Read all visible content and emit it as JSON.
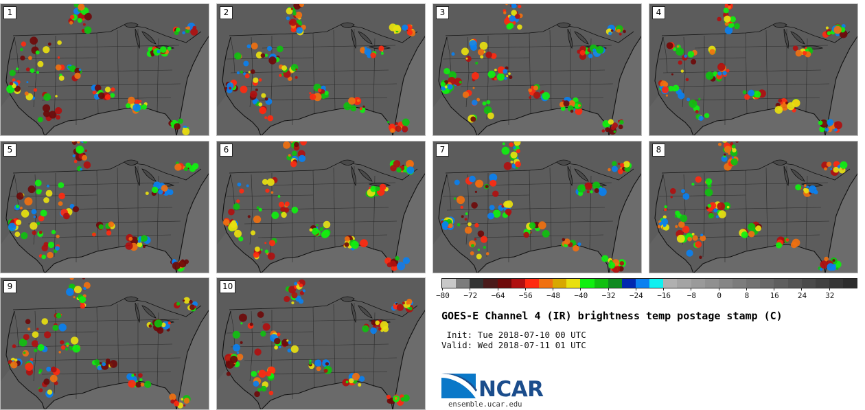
{
  "panels": [
    {
      "label": "1"
    },
    {
      "label": "2"
    },
    {
      "label": "3"
    },
    {
      "label": "4"
    },
    {
      "label": "5"
    },
    {
      "label": "6"
    },
    {
      "label": "7"
    },
    {
      "label": "8"
    },
    {
      "label": "9"
    },
    {
      "label": "10"
    }
  ],
  "colorbar": {
    "min": -80,
    "max": 40,
    "step": 4,
    "tick_labels": [
      "-80",
      "-72",
      "-64",
      "-56",
      "-48",
      "-40",
      "-32",
      "-24",
      "-16",
      "-8",
      "0",
      "8",
      "16",
      "24",
      "32"
    ],
    "tick_values": [
      -80,
      -72,
      -64,
      -56,
      -48,
      -40,
      -32,
      -24,
      -16,
      -8,
      0,
      8,
      16,
      24,
      32
    ],
    "colors": [
      "#c8c8c8",
      "#7c7c7c",
      "#333333",
      "#4a1a1a",
      "#6e0a0a",
      "#b01010",
      "#ff2a10",
      "#f07010",
      "#d8a800",
      "#e8e010",
      "#10f010",
      "#10c010",
      "#108a20",
      "#0028b0",
      "#0a80f0",
      "#10f0f0",
      "#b0b0b0",
      "#a4a4a4",
      "#9a9a9a",
      "#909090",
      "#868686",
      "#7c7c7c",
      "#727272",
      "#686868",
      "#5e5e5e",
      "#545454",
      "#4a4a4a",
      "#404040",
      "#363636",
      "#2c2c2c"
    ]
  },
  "title": "GOES-E Channel 4 (IR) brightness temp postage stamp (C)",
  "init_line": " Init: Tue 2018-07-10 00 UTC",
  "valid_line": "Valid: Wed 2018-07-11 01 UTC",
  "logo_text": "NCAR",
  "website": "ensemble.ucar.edu"
}
